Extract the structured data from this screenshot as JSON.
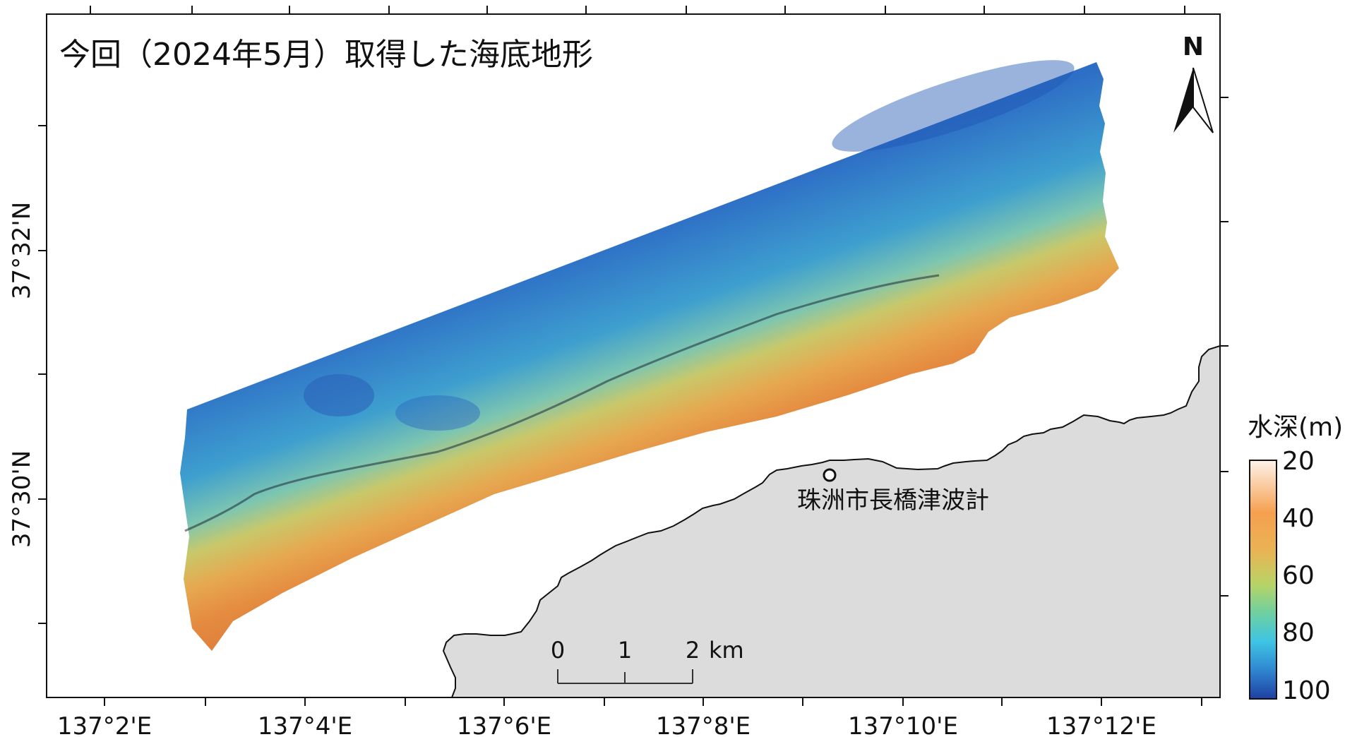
{
  "map": {
    "title": "今回（2024年5月）取得した海底地形",
    "north_label": "N",
    "lon_ticks": [
      "137°2'E",
      "137°4'E",
      "137°6'E",
      "137°8'E",
      "137°10'E",
      "137°12'E"
    ],
    "lat_ticks": [
      "37°32'N",
      "37°30'N"
    ],
    "place_label": "珠洲市長橋津波計",
    "scale_bar": {
      "labels": [
        "0",
        "1",
        "2"
      ],
      "unit": "km"
    }
  },
  "legend": {
    "title": "水深(m)",
    "labels": [
      "20",
      "40",
      "60",
      "80",
      "100"
    ],
    "colors": [
      "#fdf3ea",
      "#f6a04f",
      "#e9b354",
      "#b8d466",
      "#6ed0a0",
      "#3ec4e4",
      "#2f86d0",
      "#1f3fa3"
    ]
  },
  "colors": {
    "land": "#dcdcdc",
    "coast": "#111111",
    "deep": "#2a6fc4",
    "mid": "#4db3c8",
    "shallow": "#e6a24a"
  }
}
